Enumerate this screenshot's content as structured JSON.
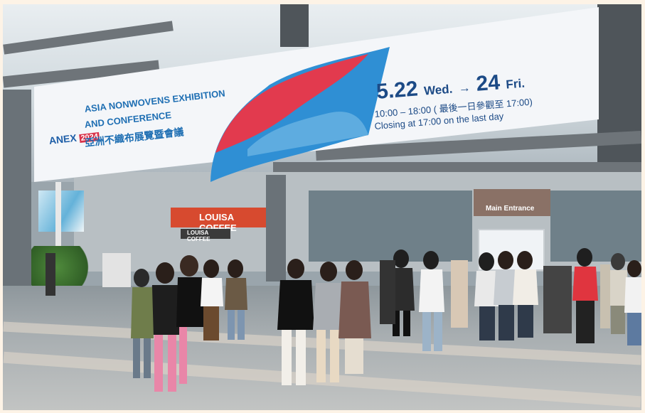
{
  "banner": {
    "logo_text": "ANEX",
    "logo_year": "2024",
    "line1": "ASIA NONWOVENS EXHIBITION",
    "line2": "AND CONFERENCE",
    "line3": "亞洲不織布展覽暨會議",
    "date_start": "5.22",
    "date_start_day": "Wed.",
    "arrow": "→",
    "date_end": "24",
    "date_end_day": "Fri.",
    "hours": "10:00 – 18:00 ( 最後一日參觀至 17:00)",
    "closing": "Closing at 17:00 on the last day",
    "colors": {
      "background": "#f4f6f9",
      "blue": "#2f8fd4",
      "red": "#e23a4e",
      "text": "#1c4a86"
    }
  },
  "signs": {
    "shop_main": "LOUISA COFFEE",
    "shop_secondary": "LOUISA COFFEE",
    "entrance": "Main Entrance"
  }
}
